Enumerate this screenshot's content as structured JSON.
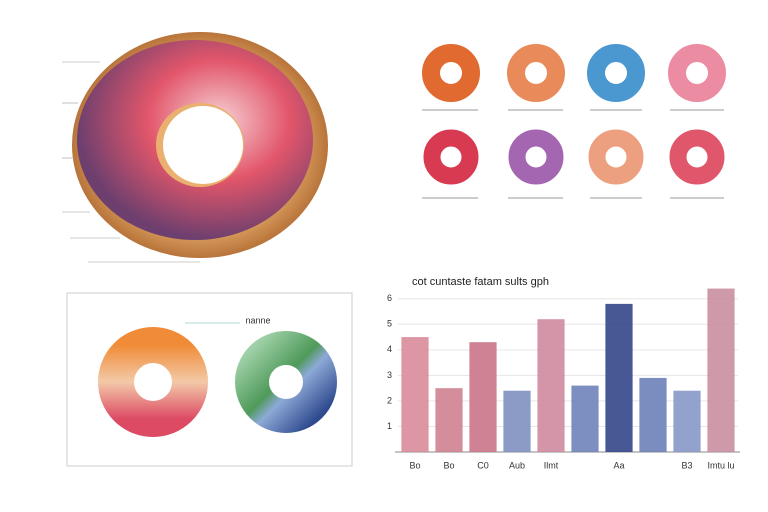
{
  "chart_data": {
    "type": "bar",
    "title": "cot cuntaste fatam sults gph",
    "categories": [
      "Bo",
      "Bo",
      "C0",
      "Aub",
      "Ilmt",
      null,
      "Aa",
      null,
      "B3",
      "Imtu lu"
    ],
    "values": [
      4.5,
      2.5,
      4.3,
      2.4,
      5.2,
      2.6,
      5.8,
      2.9,
      2.4,
      6.4
    ],
    "colors": [
      "#d98b9a",
      "#cf8290",
      "#c97488",
      "#7f90bf",
      "#d0899e",
      "#6f82ba",
      "#33468a",
      "#6d80b8",
      "#8797c8",
      "#c98ea0"
    ],
    "ylim": [
      0,
      6.5
    ],
    "yticks": [
      1,
      2,
      3,
      4,
      5,
      6
    ],
    "grid": true
  },
  "pie_label": "nanne"
}
